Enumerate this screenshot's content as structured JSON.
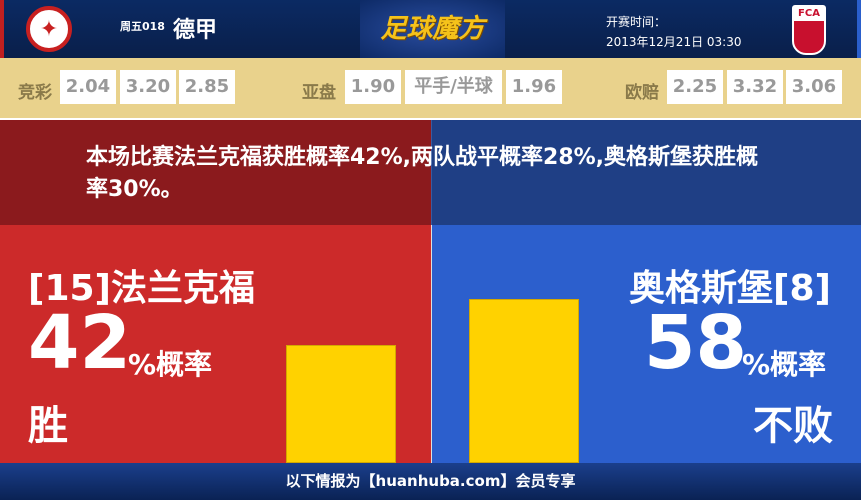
{
  "header": {
    "match_no": "周五018",
    "league": "德甲",
    "logo_text": "足球魔方",
    "time_label": "开赛时间：",
    "time_value": "2013年12月21日 03:30",
    "away_crest_text": "FCA"
  },
  "odds": {
    "jingcai": {
      "label": "竞彩",
      "values": [
        "2.04",
        "3.20",
        "2.85"
      ]
    },
    "yapan": {
      "label": "亚盘",
      "values": [
        "1.90",
        "平手/半球",
        "1.96"
      ]
    },
    "oupei": {
      "label": "欧赔",
      "values": [
        "2.25",
        "3.32",
        "3.06"
      ]
    }
  },
  "summary": "本场比赛法兰克福获胜概率42%,两队战平概率28%,奥格斯堡获胜概率30%。",
  "home": {
    "name": "[15]法兰克福",
    "percent": "42",
    "unit": "%概率",
    "outcome": "胜",
    "value": 42,
    "color": "#cc2a2a"
  },
  "away": {
    "name": "奥格斯堡[8]",
    "percent": "58",
    "unit": "%概率",
    "outcome": "不败",
    "value": 58,
    "color": "#2c5fcd"
  },
  "bar_color": "#ffd200",
  "footer": "以下情报为【huanhuba.com】会员专享"
}
